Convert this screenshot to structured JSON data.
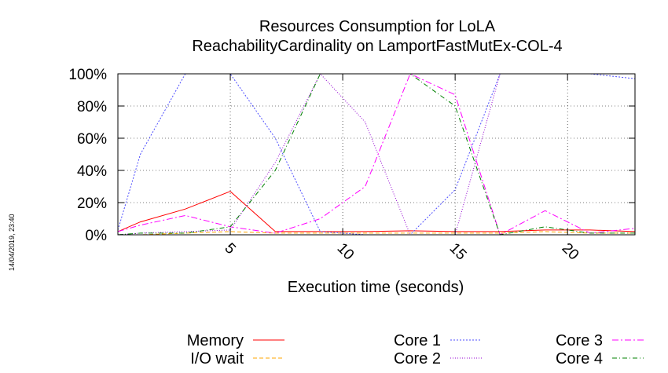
{
  "chart_data": {
    "type": "line",
    "title": "Resources Consumption for LoLA",
    "subtitle": "ReachabilityCardinality on LamportFastMutEx-COL-4",
    "xlabel": "Execution time (seconds)",
    "ylabel": "",
    "xlim": [
      0,
      23
    ],
    "ylim": [
      0,
      100
    ],
    "x_ticks": [
      5,
      10,
      15,
      20
    ],
    "x_tick_labels": [
      "5",
      "10",
      "15",
      "20"
    ],
    "y_ticks": [
      0,
      20,
      40,
      60,
      80,
      100
    ],
    "y_tick_labels": [
      "0%",
      "20%",
      "40%",
      "60%",
      "80%",
      "100%"
    ],
    "grid": true,
    "legend_position": "bottom",
    "timestamp": "14/04/2019, 23:40",
    "x": [
      0,
      1,
      3,
      5,
      7,
      9,
      11,
      13,
      15,
      17,
      19,
      21,
      23
    ],
    "series": [
      {
        "name": "Memory",
        "color": "#ff0000",
        "dash": "solid",
        "values": [
          2,
          8,
          16,
          27,
          2,
          2,
          2,
          2.5,
          2,
          2,
          3,
          3,
          2
        ]
      },
      {
        "name": "I/O wait",
        "color": "#ffa500",
        "dash": "5,3",
        "values": [
          0,
          0,
          1,
          2,
          1,
          1,
          1,
          1,
          1,
          1,
          2,
          1,
          1
        ]
      },
      {
        "name": "Core 1",
        "color": "#4d4dff",
        "dash": "2,2",
        "values": [
          3,
          50,
          100,
          100,
          60,
          2,
          0,
          0,
          28,
          100,
          100,
          100,
          97
        ]
      },
      {
        "name": "Core 2",
        "color": "#9400d3",
        "dash": "1,2",
        "values": [
          0,
          1,
          2,
          3,
          45,
          100,
          70,
          0,
          0,
          100,
          100,
          100,
          100
        ]
      },
      {
        "name": "Core 3",
        "color": "#ff00ff",
        "dash": "8,3,2,3",
        "values": [
          2,
          6,
          12,
          5,
          1,
          10,
          30,
          100,
          87,
          0,
          15,
          1,
          4
        ]
      },
      {
        "name": "Core 4",
        "color": "#008000",
        "dash": "6,3,1,3",
        "values": [
          0,
          1,
          1,
          5,
          40,
          100,
          100,
          100,
          80,
          0,
          5,
          1,
          1
        ]
      }
    ]
  }
}
